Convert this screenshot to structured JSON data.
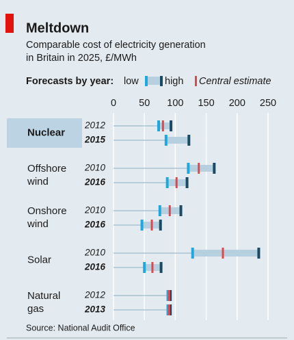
{
  "chart_data": {
    "type": "range",
    "title": "Meltdown",
    "subtitle": [
      "Comparable cost of electricity generation",
      "in Britain in 2025, £/MWh"
    ],
    "legend": {
      "heading": "Forecasts by year:",
      "low": "low",
      "high": "high",
      "central": "Central estimate"
    },
    "colors": {
      "low": "#1fa8de",
      "high": "#1b4a63",
      "central": "#e0474c",
      "band": "#b6d0e0",
      "stem": "#9fb9cc"
    },
    "xlim": [
      0,
      250
    ],
    "xticks": [
      0,
      50,
      100,
      150,
      200,
      250
    ],
    "grid": true,
    "groups": [
      {
        "label": [
          "Nuclear"
        ],
        "highlight": true,
        "forecasts": [
          {
            "year": "2012",
            "low": 73,
            "central": 80,
            "high": 93
          },
          {
            "year": "2015",
            "low": 85,
            "central": null,
            "high": 122
          }
        ]
      },
      {
        "label": [
          "Offshore",
          "wind"
        ],
        "forecasts": [
          {
            "year": "2010",
            "low": 121,
            "central": 138,
            "high": 163
          },
          {
            "year": "2016",
            "low": 87,
            "central": 102,
            "high": 119
          }
        ]
      },
      {
        "label": [
          "Onshore",
          "wind"
        ],
        "forecasts": [
          {
            "year": "2010",
            "low": 75,
            "central": 91,
            "high": 109
          },
          {
            "year": "2016",
            "low": 46,
            "central": 62,
            "high": 76
          }
        ]
      },
      {
        "label": [
          "Solar"
        ],
        "forecasts": [
          {
            "year": "2010",
            "low": 128,
            "central": 177,
            "high": 235
          },
          {
            "year": "2016",
            "low": 50,
            "central": 63,
            "high": 77
          }
        ]
      },
      {
        "label": [
          "Natural",
          "gas"
        ],
        "forecasts": [
          {
            "year": "2012",
            "low": 88,
            "central": 90,
            "high": 92
          },
          {
            "year": "2013",
            "low": 88,
            "central": 90,
            "high": 92
          }
        ]
      }
    ],
    "source": "Source: National Audit Office"
  }
}
